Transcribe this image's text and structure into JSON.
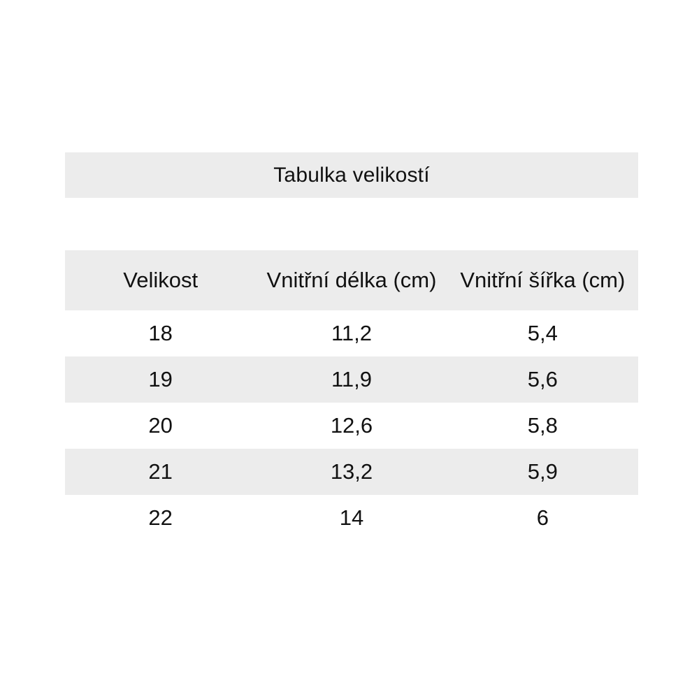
{
  "title": "Tabulka velikostí",
  "table": {
    "columns": [
      "Velikost",
      "Vnitřní délka (cm)",
      "Vnitřní šířka (cm)"
    ],
    "rows": [
      [
        "18",
        "11,2",
        "5,4"
      ],
      [
        "19",
        "11,9",
        "5,6"
      ],
      [
        "20",
        "12,6",
        "5,8"
      ],
      [
        "21",
        "13,2",
        "5,9"
      ],
      [
        "22",
        "14",
        "6"
      ]
    ]
  },
  "colors": {
    "band_bg": "#ececec",
    "page_bg": "#ffffff",
    "text": "#111111"
  }
}
